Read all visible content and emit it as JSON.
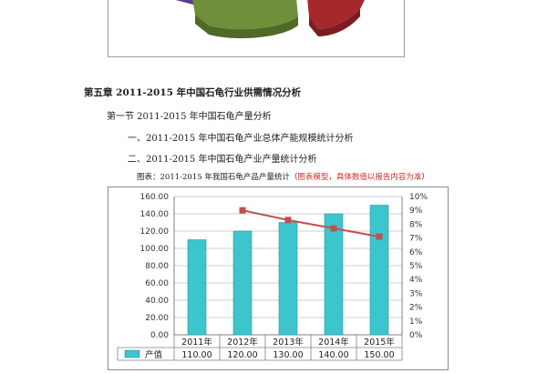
{
  "doc": {
    "chapter_title": "第五章 2011-2015 年中国石龟行业供需情况分析",
    "section_title": "第一节 2011-2015 年中国石龟产量分析",
    "item1": "一、2011-2015 年中国石龟产业总体产能规模统计分析",
    "item2": "二、2011-2015 年中国石龟产业产量统计分析",
    "figure_prefix": "图表：2011-2015 年我国石龟产品产量统计（",
    "figure_note": "图表模型，具体数值以报告内容为准",
    "figure_suffix": "）"
  },
  "pie_colors": {
    "purple": "#5b3d86",
    "green": "#6f8f3a",
    "red": "#a5282b"
  },
  "chart_data": {
    "type": "bar",
    "categories": [
      "2011年",
      "2012年",
      "2013年",
      "2014年",
      "2015年"
    ],
    "series": [
      {
        "name": "产值",
        "values": [
          110,
          120,
          130,
          140,
          150
        ],
        "color": "#3cc5cc",
        "labels": [
          "110.00",
          "120.00",
          "130.00",
          "140.00",
          "150.00"
        ]
      },
      {
        "values": [
          null,
          9.0,
          8.3,
          7.7,
          7.1
        ],
        "color": "#c0504d",
        "axis": "right"
      }
    ],
    "ylim": [
      0,
      160
    ],
    "yticks": [
      "0.00",
      "20.00",
      "40.00",
      "60.00",
      "80.00",
      "100.00",
      "120.00",
      "140.00",
      "160.00"
    ],
    "y2lim": [
      0,
      10
    ],
    "y2ticks": [
      "0%",
      "1%",
      "2%",
      "3%",
      "4%",
      "5%",
      "6%",
      "7%",
      "8%",
      "9%",
      "10%"
    ],
    "grid": true
  }
}
